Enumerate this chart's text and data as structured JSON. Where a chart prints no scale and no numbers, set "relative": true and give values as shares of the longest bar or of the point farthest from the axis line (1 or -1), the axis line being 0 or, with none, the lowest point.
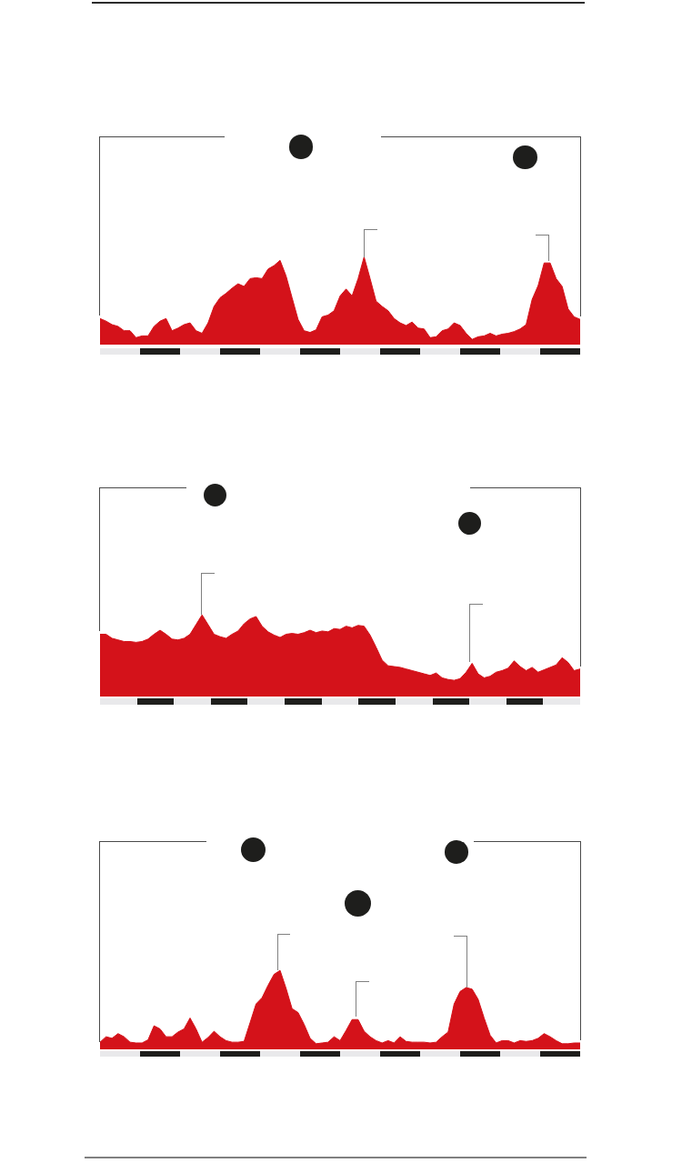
{
  "chart_data": [
    {
      "type": "area",
      "relative": true,
      "color": "#d4121a",
      "categories": [
        null,
        null,
        null,
        null,
        null,
        null,
        null,
        null,
        null,
        null,
        null,
        null,
        null,
        null,
        null,
        null,
        null,
        null,
        null,
        null,
        null,
        null,
        null,
        null,
        null,
        null,
        null,
        null,
        null,
        null,
        null,
        null,
        null,
        null,
        null,
        null,
        null,
        null,
        null,
        null,
        null,
        null,
        null,
        null,
        null,
        null,
        null,
        null,
        null,
        null,
        null,
        null,
        null,
        null,
        null,
        null,
        null,
        null,
        null,
        null,
        null,
        null,
        null,
        null,
        null,
        null,
        null,
        null,
        null,
        null,
        null,
        null,
        null,
        null,
        null,
        null,
        null,
        null,
        null,
        null,
        null
      ],
      "values": [
        0.29,
        0.26,
        0.22,
        0.2,
        0.15,
        0.15,
        0.07,
        0.09,
        0.09,
        0.2,
        0.26,
        0.29,
        0.15,
        0.18,
        0.22,
        0.24,
        0.15,
        0.12,
        0.24,
        0.43,
        0.53,
        0.58,
        0.64,
        0.69,
        0.66,
        0.75,
        0.76,
        0.75,
        0.86,
        0.9,
        0.96,
        0.78,
        0.53,
        0.28,
        0.15,
        0.13,
        0.16,
        0.31,
        0.33,
        0.38,
        0.55,
        0.63,
        0.55,
        0.75,
        1,
        0.75,
        0.49,
        0.43,
        0.38,
        0.29,
        0.24,
        0.21,
        0.25,
        0.18,
        0.17,
        0.07,
        0.08,
        0.15,
        0.17,
        0.24,
        0.21,
        0.12,
        0.05,
        0.08,
        0.09,
        0.12,
        0.09,
        0.11,
        0.12,
        0.14,
        0.17,
        0.22,
        0.51,
        0.67,
        0.93,
        0.93,
        0.75,
        0.66,
        0.4,
        0.31,
        0.28
      ]
    },
    {
      "type": "area",
      "relative": true,
      "color": "#d4121a",
      "categories": [
        null,
        null,
        null,
        null,
        null,
        null,
        null,
        null,
        null,
        null,
        null,
        null,
        null,
        null,
        null,
        null,
        null,
        null,
        null,
        null,
        null,
        null,
        null,
        null,
        null,
        null,
        null,
        null,
        null,
        null,
        null,
        null,
        null,
        null,
        null,
        null,
        null,
        null,
        null,
        null,
        null,
        null,
        null,
        null,
        null,
        null,
        null,
        null,
        null,
        null,
        null,
        null,
        null,
        null,
        null,
        null,
        null,
        null,
        null,
        null,
        null,
        null,
        null,
        null,
        null,
        null,
        null,
        null,
        null,
        null,
        null,
        null,
        null,
        null,
        null,
        null,
        null,
        null,
        null,
        null,
        null
      ],
      "values": [
        0.76,
        0.76,
        0.71,
        0.69,
        0.67,
        0.67,
        0.66,
        0.67,
        0.7,
        0.76,
        0.81,
        0.76,
        0.7,
        0.69,
        0.71,
        0.76,
        0.88,
        1,
        0.88,
        0.76,
        0.73,
        0.71,
        0.76,
        0.8,
        0.89,
        0.95,
        0.98,
        0.86,
        0.79,
        0.75,
        0.72,
        0.76,
        0.77,
        0.76,
        0.78,
        0.81,
        0.78,
        0.8,
        0.79,
        0.83,
        0.82,
        0.86,
        0.84,
        0.87,
        0.86,
        0.75,
        0.6,
        0.44,
        0.37,
        0.36,
        0.35,
        0.33,
        0.31,
        0.29,
        0.27,
        0.25,
        0.28,
        0.22,
        0.2,
        0.19,
        0.21,
        0.29,
        0.4,
        0.27,
        0.22,
        0.24,
        0.29,
        0.31,
        0.34,
        0.43,
        0.36,
        0.31,
        0.35,
        0.29,
        0.32,
        0.35,
        0.38,
        0.47,
        0.41,
        0.31,
        0.33
      ]
    },
    {
      "type": "area",
      "relative": true,
      "color": "#d4121a",
      "categories": [
        null,
        null,
        null,
        null,
        null,
        null,
        null,
        null,
        null,
        null,
        null,
        null,
        null,
        null,
        null,
        null,
        null,
        null,
        null,
        null,
        null,
        null,
        null,
        null,
        null,
        null,
        null,
        null,
        null,
        null,
        null,
        null,
        null,
        null,
        null,
        null,
        null,
        null,
        null,
        null,
        null,
        null,
        null,
        null,
        null,
        null,
        null,
        null,
        null,
        null,
        null,
        null,
        null,
        null,
        null,
        null,
        null,
        null,
        null,
        null,
        null,
        null,
        null,
        null,
        null,
        null,
        null,
        null,
        null,
        null,
        null,
        null,
        null,
        null,
        null,
        null,
        null,
        null,
        null,
        null,
        null
      ],
      "values": [
        0.08,
        0.15,
        0.13,
        0.19,
        0.15,
        0.08,
        0.07,
        0.07,
        0.11,
        0.29,
        0.25,
        0.15,
        0.15,
        0.21,
        0.25,
        0.39,
        0.25,
        0.08,
        0.14,
        0.22,
        0.15,
        0.1,
        0.08,
        0.08,
        0.09,
        0.33,
        0.57,
        0.65,
        0.81,
        0.95,
        1,
        0.77,
        0.51,
        0.46,
        0.31,
        0.13,
        0.06,
        0.07,
        0.08,
        0.15,
        0.1,
        0.23,
        0.37,
        0.37,
        0.22,
        0.15,
        0.1,
        0.07,
        0.1,
        0.07,
        0.15,
        0.09,
        0.08,
        0.08,
        0.08,
        0.07,
        0.08,
        0.15,
        0.21,
        0.57,
        0.73,
        0.78,
        0.76,
        0.63,
        0.39,
        0.17,
        0.07,
        0.1,
        0.1,
        0.07,
        0.1,
        0.09,
        0.1,
        0.13,
        0.19,
        0.15,
        0.1,
        0.06,
        0.06,
        0.07,
        0.07
      ]
    }
  ]
}
